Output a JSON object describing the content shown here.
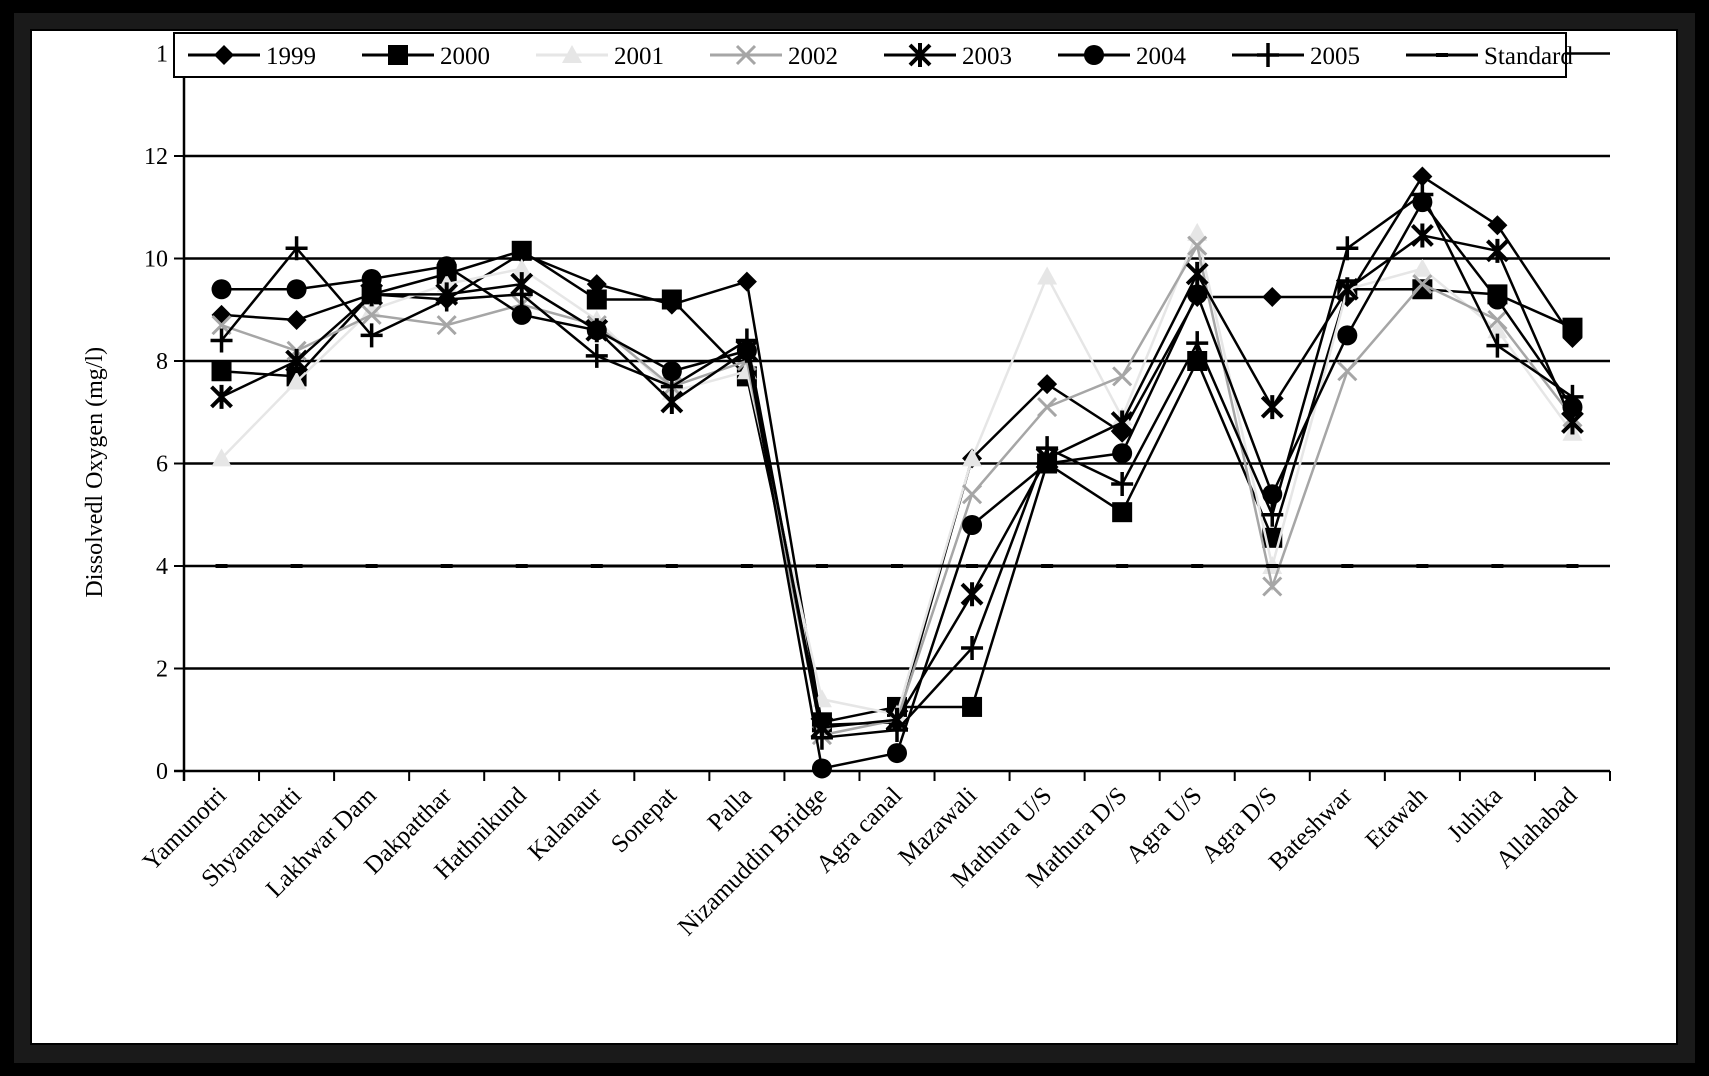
{
  "chart_data": {
    "type": "line",
    "title": "",
    "xlabel": "",
    "ylabel": "Dissolvedl Oxygen (mg/l)",
    "ylim": [
      0,
      14
    ],
    "yticks": [
      0,
      2,
      4,
      6,
      8,
      10,
      12
    ],
    "ytick_labels": [
      "0",
      "2",
      "4",
      "6",
      "8",
      "10",
      "12"
    ],
    "top_tick_label": "1",
    "grid": "horizontal",
    "legend_position": "top",
    "categories": [
      "Yamunotri",
      "Shyanachatti",
      "Lakhwar Dam",
      "Dakpatthar",
      "Hathnikund",
      "Kalanaur",
      "Sonepat",
      "Palla",
      "Nizamuddin Bridge",
      "Agra canal",
      "Mazawali",
      "Mathura U/S",
      "Mathura D/S",
      "Agra U/S",
      "Agra D/S",
      "Bateshwar",
      "Etawah",
      "Juhika",
      "Allahabad"
    ],
    "series": [
      {
        "name": "1999",
        "marker": "diamond",
        "color": "#000000",
        "values": [
          8.9,
          8.8,
          9.3,
          9.2,
          10.1,
          9.5,
          9.1,
          9.55,
          0.9,
          0.95,
          6.1,
          7.55,
          6.6,
          9.25,
          9.25,
          9.25,
          11.6,
          10.65,
          8.45
        ]
      },
      {
        "name": "2000",
        "marker": "square",
        "color": "#000000",
        "values": [
          7.8,
          7.7,
          9.3,
          9.7,
          10.15,
          9.2,
          9.2,
          7.7,
          0.95,
          1.25,
          1.25,
          6.0,
          5.05,
          8.0,
          4.55,
          9.4,
          9.4,
          9.3,
          8.65
        ]
      },
      {
        "name": "2001",
        "marker": "triangle",
        "color": "#e6e6e6",
        "values": [
          6.1,
          7.6,
          9.0,
          9.5,
          9.8,
          8.8,
          7.4,
          7.8,
          1.4,
          1.1,
          6.1,
          9.65,
          6.9,
          10.5,
          4.0,
          9.4,
          9.8,
          8.6,
          6.6
        ]
      },
      {
        "name": "2002",
        "marker": "x",
        "color": "#a6a6a6",
        "values": [
          8.7,
          8.2,
          8.9,
          8.7,
          9.1,
          8.7,
          7.5,
          8.0,
          0.7,
          1.0,
          5.4,
          7.1,
          7.7,
          10.25,
          3.6,
          7.8,
          9.5,
          8.8,
          6.9
        ]
      },
      {
        "name": "2003",
        "marker": "star",
        "color": "#000000",
        "values": [
          7.3,
          8.0,
          9.3,
          9.3,
          9.5,
          8.6,
          7.2,
          8.2,
          0.85,
          1.0,
          3.45,
          6.1,
          6.8,
          9.7,
          7.1,
          9.4,
          10.45,
          10.15,
          6.8
        ]
      },
      {
        "name": "2004",
        "marker": "circle",
        "color": "#000000",
        "values": [
          9.4,
          9.4,
          9.6,
          9.85,
          8.9,
          8.6,
          7.8,
          8.2,
          0.05,
          0.35,
          4.8,
          6.0,
          6.2,
          9.3,
          5.4,
          8.5,
          11.1,
          9.2,
          7.1
        ]
      },
      {
        "name": "2005",
        "marker": "plus",
        "color": "#000000",
        "values": [
          8.4,
          10.2,
          8.5,
          9.2,
          9.3,
          8.1,
          7.5,
          8.4,
          0.65,
          0.8,
          2.4,
          6.3,
          5.6,
          8.35,
          5.0,
          10.2,
          11.25,
          8.3,
          7.3
        ]
      },
      {
        "name": "Standard",
        "marker": "dash",
        "color": "#000000",
        "values": [
          4,
          4,
          4,
          4,
          4,
          4,
          4,
          4,
          4,
          4,
          4,
          4,
          4,
          4,
          4,
          4,
          4,
          4,
          4
        ]
      }
    ]
  }
}
